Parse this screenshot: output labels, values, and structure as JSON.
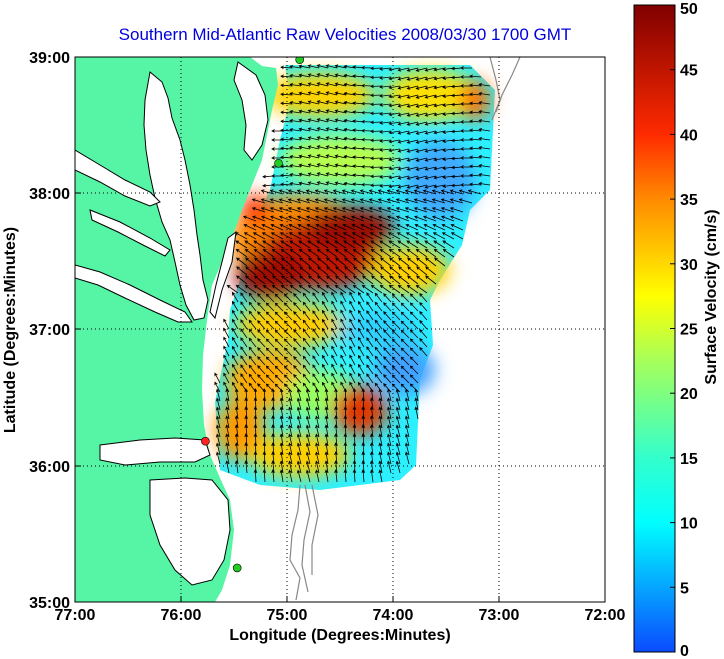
{
  "title": "Southern Mid-Atlantic Raw Velocities 2008/03/30 1700 GMT",
  "x_axis": {
    "label": "Longitude (Degrees:Minutes)",
    "ticks": [
      "77:00",
      "76:00",
      "75:00",
      "74:00",
      "73:00",
      "72:00"
    ],
    "range": [
      -77,
      -72
    ]
  },
  "y_axis": {
    "label": "Latitude (Degrees:Minutes)",
    "ticks": [
      "39:00",
      "38:00",
      "37:00",
      "36:00",
      "35:00"
    ],
    "range": [
      35,
      39
    ]
  },
  "colorbar": {
    "label": "Surface Velocity (cm/s)",
    "ticks": [
      "50",
      "45",
      "40",
      "35",
      "30",
      "25",
      "20",
      "15",
      "10",
      "5",
      "0"
    ],
    "range": [
      0,
      50
    ],
    "colormap": "jet"
  },
  "colors": {
    "land": "#55f5a5",
    "title": "#0000dd"
  },
  "stations": [
    {
      "lon": -74.88,
      "lat": 38.98,
      "color": "#22cc22"
    },
    {
      "lon": -75.08,
      "lat": 38.22,
      "color": "#22cc22"
    },
    {
      "lon": -75.77,
      "lat": 36.18,
      "color": "#ff2222"
    },
    {
      "lon": -75.47,
      "lat": 35.25,
      "color": "#22cc22"
    }
  ],
  "grid": "dotted"
}
